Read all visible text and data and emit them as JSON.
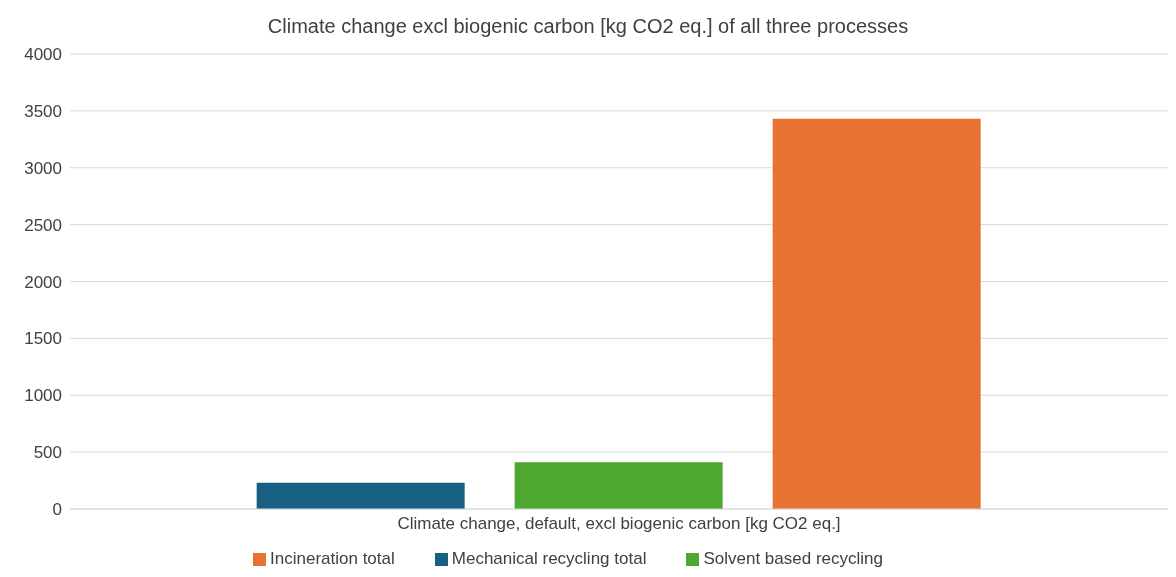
{
  "chart_data": {
    "type": "bar",
    "title": "Climate change excl biogenic carbon [kg CO2 eq.] of all three processes",
    "categories": [
      "Climate change, default, excl biogenic carbon [kg CO2 eq.]"
    ],
    "series": [
      {
        "name": "Mechanical recycling total",
        "color": "#176082",
        "values": [
          230
        ]
      },
      {
        "name": "Solvent based recycling",
        "color": "#4ea72e",
        "values": [
          410
        ]
      },
      {
        "name": "Incineration total",
        "color": "#e97132",
        "values": [
          3430
        ]
      }
    ],
    "ylim": [
      0,
      4000
    ],
    "yticks": [
      0,
      500,
      1000,
      1500,
      2000,
      2500,
      3000,
      3500,
      4000
    ],
    "grid": "y",
    "legend": "bottom"
  }
}
